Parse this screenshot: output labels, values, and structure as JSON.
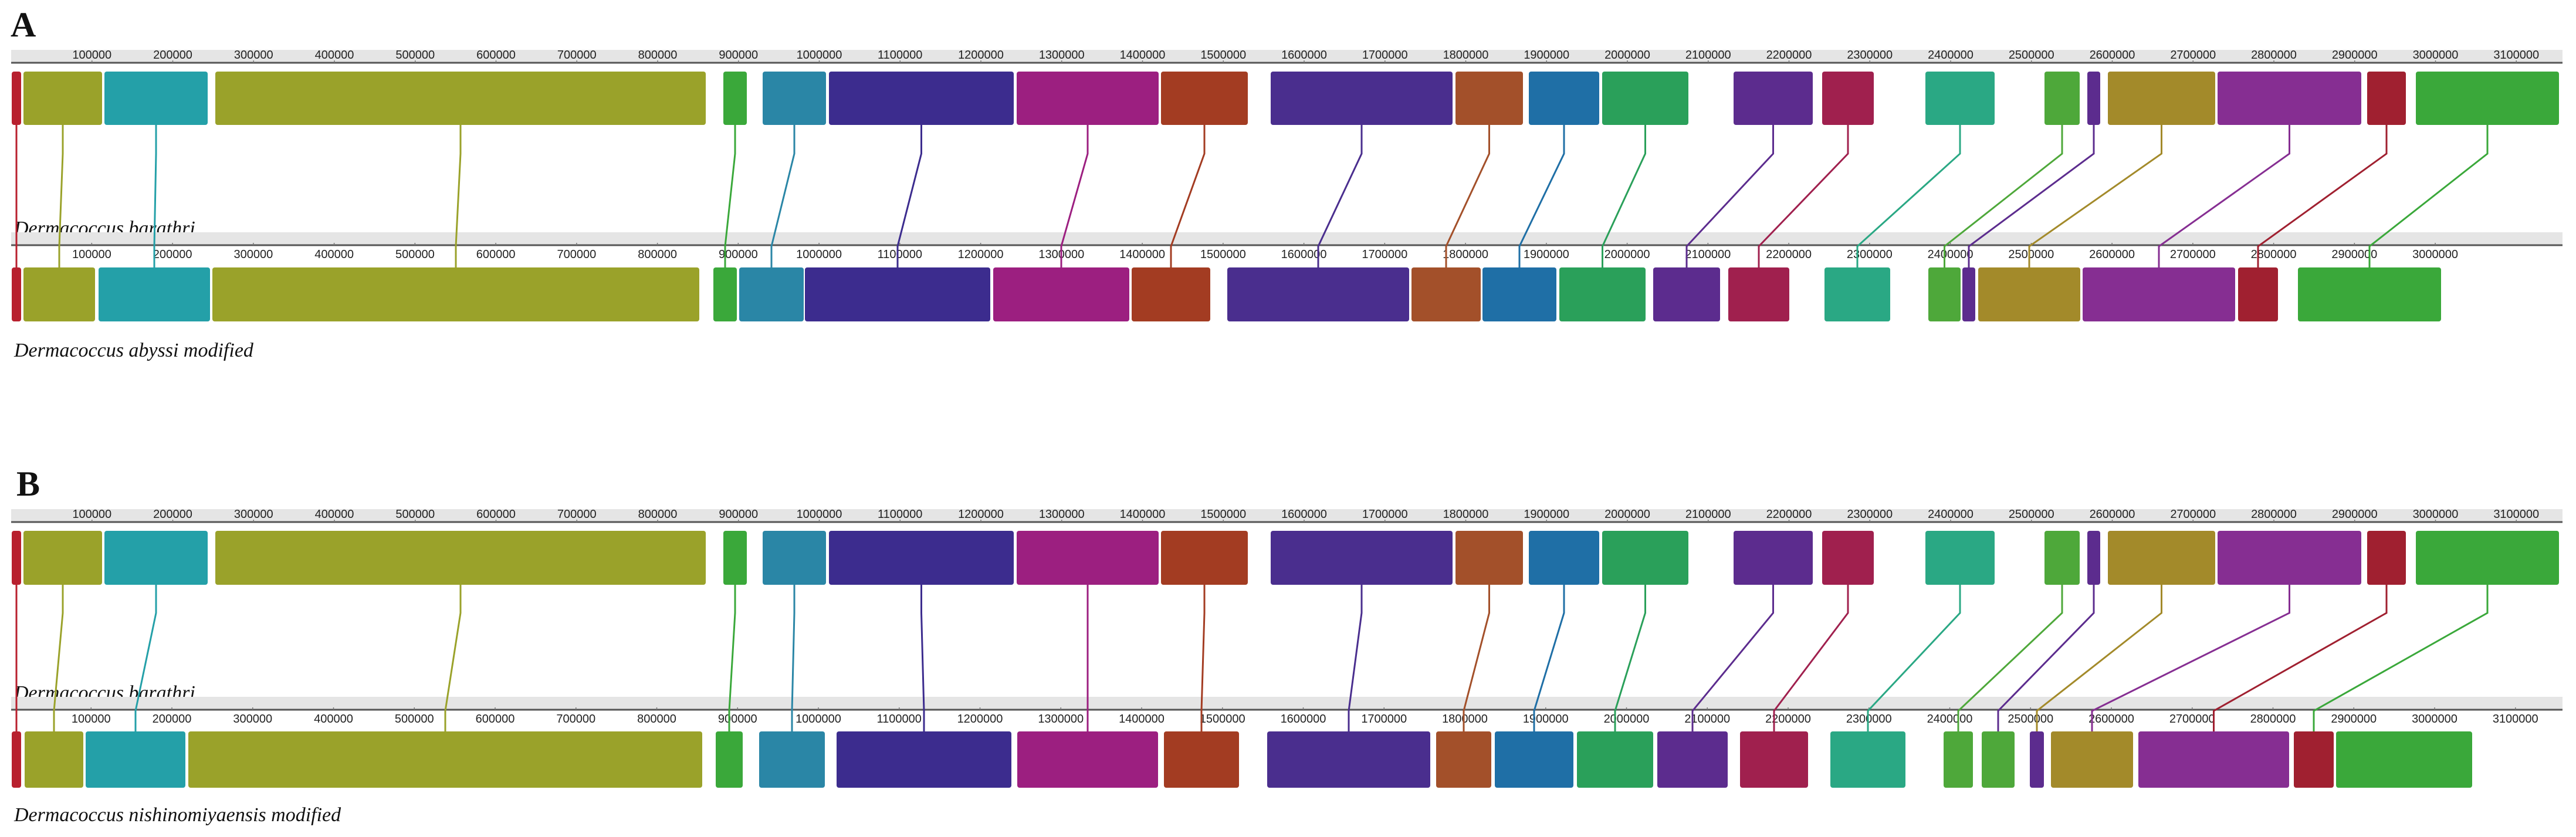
{
  "figure": {
    "panels": [
      {
        "letter": "A",
        "reference": {
          "name": "Dermacoccus barathri",
          "ticks": [
            "100000",
            "200000",
            "300000",
            "400000",
            "500000",
            "600000",
            "700000",
            "800000",
            "900000",
            "1000000",
            "1100000",
            "1200000",
            "1300000",
            "1400000",
            "1500000",
            "1600000",
            "1700000",
            "1800000",
            "1900000",
            "2000000",
            "2100000",
            "2200000",
            "2300000",
            "2400000",
            "2500000",
            "2600000",
            "2700000",
            "2800000",
            "2900000",
            "3000000",
            "3100000"
          ]
        },
        "query": {
          "name": "Dermacoccus abyssi modified",
          "ticks": [
            "100000",
            "200000",
            "300000",
            "400000",
            "500000",
            "600000",
            "700000",
            "800000",
            "900000",
            "1000000",
            "1100000",
            "1200000",
            "1300000",
            "1400000",
            "1500000",
            "1600000",
            "1700000",
            "1800000",
            "1900000",
            "2000000",
            "2100000",
            "2200000",
            "2300000",
            "2400000",
            "2500000",
            "2600000",
            "2700000",
            "2800000",
            "2900000",
            "3000000"
          ]
        }
      },
      {
        "letter": "B",
        "reference": {
          "name": "Dermacoccus barathri",
          "ticks": [
            "100000",
            "200000",
            "300000",
            "400000",
            "500000",
            "600000",
            "700000",
            "800000",
            "900000",
            "1000000",
            "1100000",
            "1200000",
            "1300000",
            "1400000",
            "1500000",
            "1600000",
            "1700000",
            "1800000",
            "1900000",
            "2000000",
            "2100000",
            "2200000",
            "2300000",
            "2400000",
            "2500000",
            "2600000",
            "2700000",
            "2800000",
            "2900000",
            "3000000",
            "3100000"
          ]
        },
        "query": {
          "name": "Dermacoccus nishinomiyaensis modified",
          "ticks": [
            "100000",
            "200000",
            "300000",
            "400000",
            "500000",
            "600000",
            "700000",
            "800000",
            "900000",
            "1000000",
            "1100000",
            "1200000",
            "1300000",
            "1400000",
            "1500000",
            "1600000",
            "1700000",
            "1800000",
            "1900000",
            "2000000",
            "2100000",
            "2200000",
            "2300000",
            "2400000",
            "2500000",
            "2600000",
            "2700000",
            "2800000",
            "2900000",
            "3000000",
            "3100000"
          ]
        }
      }
    ],
    "colors": {
      "red": "#b8202e",
      "olive": "#9aa22a",
      "teal": "#24a0a8",
      "green": "#3aa83a",
      "cyan_blue": "#2a86a6",
      "indigo": "#3c2c8e",
      "magenta": "#9c1f80",
      "rust": "#a33c22",
      "violet": "#4a2e8e",
      "orange_brown": "#a3502a",
      "blue": "#1f6fa6",
      "sea_green": "#2aa05a",
      "purple": "#5c2c8e",
      "crimson": "#a0204e",
      "jade": "#2aa884",
      "grass": "#4ea83a",
      "mustard": "#a38a2a",
      "plum": "#862e92",
      "dark_red": "#a02030",
      "axis_line": "#555555",
      "track_bg": "#e5e5e5",
      "text": "#111111"
    }
  }
}
